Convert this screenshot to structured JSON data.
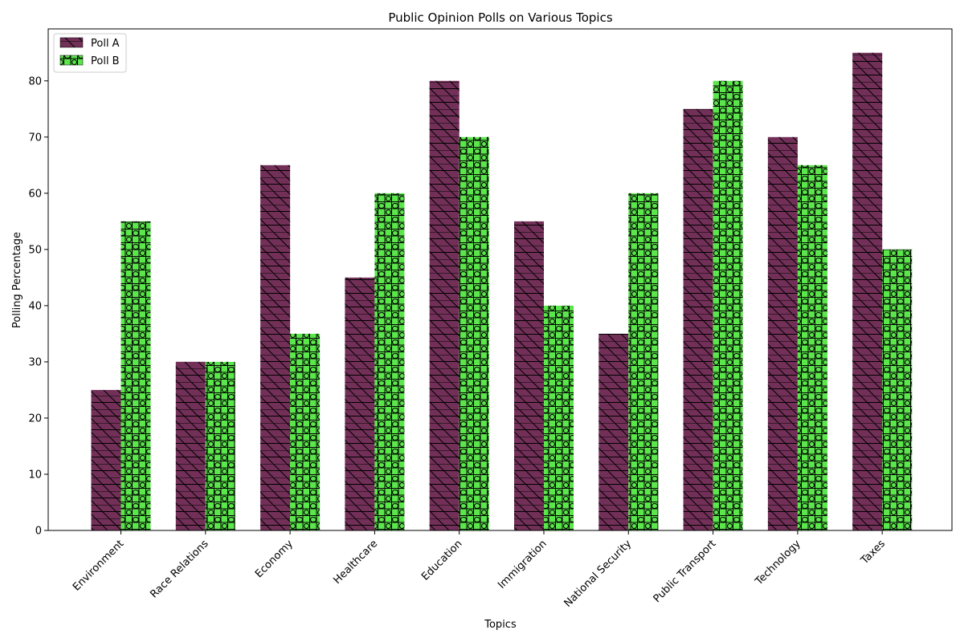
{
  "chart_data": {
    "type": "bar",
    "title": "Public Opinion Polls on Various Topics",
    "xlabel": "Topics",
    "ylabel": "Polling Percentage",
    "categories": [
      "Environment",
      "Race Relations",
      "Economy",
      "Healthcare",
      "Education",
      "Immigration",
      "National Security",
      "Public Transport",
      "Technology",
      "Taxes"
    ],
    "series": [
      {
        "name": "Poll A",
        "values": [
          25,
          30,
          65,
          45,
          80,
          55,
          35,
          75,
          70,
          85
        ],
        "color": "#722f58",
        "hatch": "backslash-horizontal"
      },
      {
        "name": "Poll B",
        "values": [
          55,
          30,
          35,
          60,
          70,
          40,
          60,
          80,
          65,
          50
        ],
        "color": "#5be64c",
        "hatch": "plus-circles"
      }
    ],
    "ylim": [
      0,
      89.25
    ],
    "yticks": [
      0,
      10,
      20,
      30,
      40,
      50,
      60,
      70,
      80
    ],
    "grid": false,
    "legend_position": "top-left"
  }
}
